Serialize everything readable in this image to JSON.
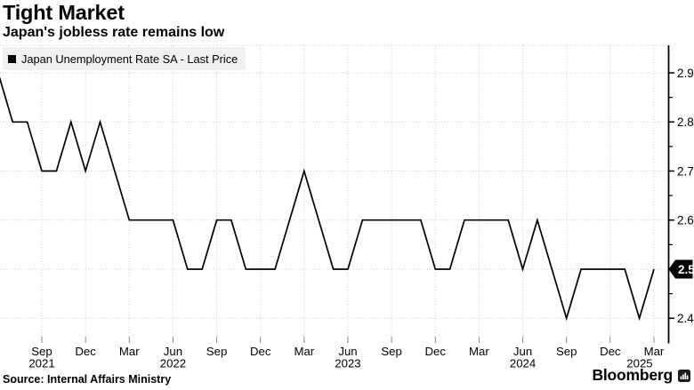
{
  "header": {
    "title": "Tight Market",
    "subtitle": "Japan's jobless rate remains low"
  },
  "legend": {
    "label": "Japan Unemployment Rate SA - Last Price"
  },
  "footer": {
    "source": "Source: Internal Affairs Ministry",
    "brand": "Bloomberg"
  },
  "colors": {
    "background": "#ffffff",
    "line": "#000000",
    "grid": "#cbcbcb",
    "axis": "#000000",
    "x_tick": "#8a8a8a",
    "legend_bg": "#f1f1f1",
    "badge_bg": "#000000",
    "badge_text": "#ffffff"
  },
  "chart_data": {
    "type": "line",
    "title": "Tight Market",
    "subtitle": "Japan's jobless rate remains low",
    "series_name": "Japan Unemployment Rate SA - Last Price",
    "ylabel": "",
    "xlabel": "",
    "grid": true,
    "legend_position": "top-left",
    "y_axis_side": "right",
    "ylim": [
      2.35,
      2.95
    ],
    "yticks": [
      2.4,
      2.5,
      2.6,
      2.7,
      2.8,
      2.9
    ],
    "minor_yticks": [
      2.45,
      2.55,
      2.65,
      2.75,
      2.85
    ],
    "last_price": "2.5",
    "last_price_value": 2.5,
    "x": [
      "Jun 2021",
      "Jul 2021",
      "Aug 2021",
      "Sep 2021",
      "Oct 2021",
      "Nov 2021",
      "Dec 2021",
      "Jan 2022",
      "Feb 2022",
      "Mar 2022",
      "Apr 2022",
      "May 2022",
      "Jun 2022",
      "Jul 2022",
      "Aug 2022",
      "Sep 2022",
      "Oct 2022",
      "Nov 2022",
      "Dec 2022",
      "Jan 2023",
      "Feb 2023",
      "Mar 2023",
      "Apr 2023",
      "May 2023",
      "Jun 2023",
      "Jul 2023",
      "Aug 2023",
      "Sep 2023",
      "Oct 2023",
      "Nov 2023",
      "Dec 2023",
      "Jan 2024",
      "Feb 2024",
      "Mar 2024",
      "Apr 2024",
      "May 2024",
      "Jun 2024",
      "Jul 2024",
      "Aug 2024",
      "Sep 2024",
      "Oct 2024",
      "Nov 2024",
      "Dec 2024",
      "Jan 2025",
      "Feb 2025",
      "Mar 2025"
    ],
    "values": [
      2.9,
      2.8,
      2.8,
      2.7,
      2.7,
      2.8,
      2.7,
      2.8,
      2.7,
      2.6,
      2.6,
      2.6,
      2.6,
      2.5,
      2.5,
      2.6,
      2.6,
      2.5,
      2.5,
      2.5,
      2.6,
      2.7,
      2.6,
      2.5,
      2.5,
      2.6,
      2.6,
      2.6,
      2.6,
      2.6,
      2.5,
      2.5,
      2.6,
      2.6,
      2.6,
      2.6,
      2.5,
      2.6,
      2.5,
      2.4,
      2.5,
      2.5,
      2.5,
      2.5,
      2.4,
      2.5
    ],
    "xticks": [
      {
        "i": 3,
        "label": "Sep",
        "year": "2021"
      },
      {
        "i": 6,
        "label": "Dec"
      },
      {
        "i": 9,
        "label": "Mar"
      },
      {
        "i": 12,
        "label": "Jun",
        "year": "2022"
      },
      {
        "i": 15,
        "label": "Sep"
      },
      {
        "i": 18,
        "label": "Dec"
      },
      {
        "i": 21,
        "label": "Mar"
      },
      {
        "i": 24,
        "label": "Jun",
        "year": "2023"
      },
      {
        "i": 27,
        "label": "Sep"
      },
      {
        "i": 30,
        "label": "Dec"
      },
      {
        "i": 33,
        "label": "Mar"
      },
      {
        "i": 36,
        "label": "Jun",
        "year": "2024"
      },
      {
        "i": 39,
        "label": "Sep"
      },
      {
        "i": 42,
        "label": "Dec"
      },
      {
        "i": 45,
        "label": "Mar",
        "year": "2025"
      }
    ]
  }
}
